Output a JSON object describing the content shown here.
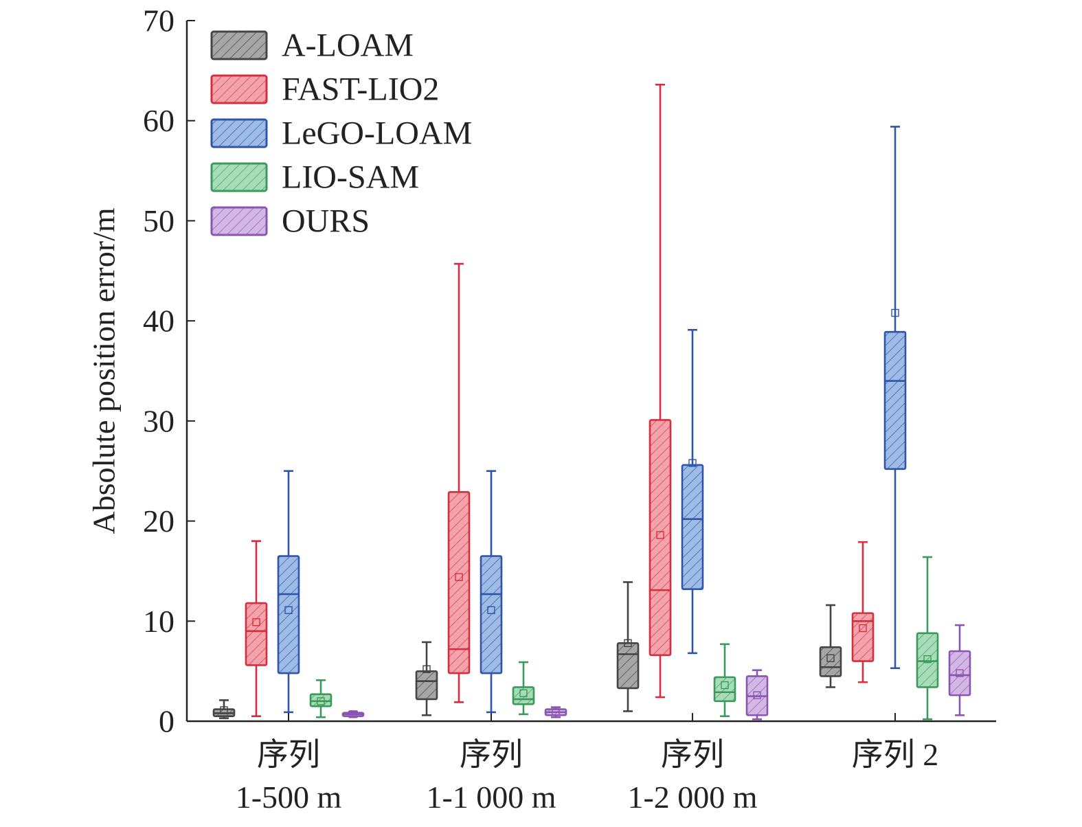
{
  "chart_data": {
    "type": "box",
    "ylabel": "Absolute position error/m",
    "ylim": [
      0,
      70
    ],
    "yticks": [
      0,
      10,
      20,
      30,
      40,
      50,
      60,
      70
    ],
    "legend_position": "top-left",
    "categories": [
      [
        "序列",
        "1-500 m"
      ],
      [
        "序列",
        "1-1 000 m"
      ],
      [
        "序列",
        "1-2 000 m"
      ],
      [
        "序列 2"
      ]
    ],
    "series": [
      {
        "name": "A-LOAM",
        "stroke": "#444444",
        "fill": "#a6a6a6",
        "boxes": [
          {
            "whisker_low": 0.3,
            "q1": 0.5,
            "median": 0.8,
            "q3": 1.2,
            "whisker_high": 2.1,
            "mean": 1.1
          },
          {
            "whisker_low": 0.6,
            "q1": 2.2,
            "median": 4.0,
            "q3": 5.0,
            "whisker_high": 7.9,
            "mean": 5.2
          },
          {
            "whisker_low": 1.0,
            "q1": 3.3,
            "median": 6.7,
            "q3": 7.8,
            "whisker_high": 13.9,
            "mean": 7.8
          },
          {
            "whisker_low": 3.4,
            "q1": 4.5,
            "median": 5.4,
            "q3": 7.4,
            "whisker_high": 11.6,
            "mean": 6.3
          }
        ]
      },
      {
        "name": "FAST-LIO2",
        "stroke": "#d62e3e",
        "fill": "#f3a3ab",
        "boxes": [
          {
            "whisker_low": 0.5,
            "q1": 5.6,
            "median": 9.0,
            "q3": 11.8,
            "whisker_high": 18.0,
            "mean": 9.9
          },
          {
            "whisker_low": 1.9,
            "q1": 4.8,
            "median": 7.2,
            "q3": 22.9,
            "whisker_high": 45.7,
            "mean": 14.4
          },
          {
            "whisker_low": 2.4,
            "q1": 6.6,
            "median": 13.1,
            "q3": 30.1,
            "whisker_high": 63.6,
            "mean": 18.6
          },
          {
            "whisker_low": 3.9,
            "q1": 6.0,
            "median": 10.0,
            "q3": 10.8,
            "whisker_high": 17.9,
            "mean": 9.3
          }
        ]
      },
      {
        "name": "LeGO-LOAM",
        "stroke": "#2e55a8",
        "fill": "#9dbbe5",
        "boxes": [
          {
            "whisker_low": 0.9,
            "q1": 4.8,
            "median": 12.7,
            "q3": 16.5,
            "whisker_high": 25.0,
            "mean": 11.1
          },
          {
            "whisker_low": 0.9,
            "q1": 4.8,
            "median": 12.7,
            "q3": 16.5,
            "whisker_high": 25.0,
            "mean": 11.1
          },
          {
            "whisker_low": 6.8,
            "q1": 13.2,
            "median": 20.2,
            "q3": 25.6,
            "whisker_high": 39.1,
            "mean": 25.8
          },
          {
            "whisker_low": 5.3,
            "q1": 25.2,
            "median": 34.0,
            "q3": 38.9,
            "whisker_high": 59.4,
            "mean": 40.8
          }
        ]
      },
      {
        "name": "LIO-SAM",
        "stroke": "#3a9a5a",
        "fill": "#a8dcb8",
        "boxes": [
          {
            "whisker_low": 0.4,
            "q1": 1.5,
            "median": 2.0,
            "q3": 2.7,
            "whisker_high": 4.1,
            "mean": 2.0
          },
          {
            "whisker_low": 0.7,
            "q1": 1.7,
            "median": 2.2,
            "q3": 3.4,
            "whisker_high": 5.9,
            "mean": 2.8
          },
          {
            "whisker_low": 0.5,
            "q1": 2.0,
            "median": 2.9,
            "q3": 4.4,
            "whisker_high": 7.7,
            "mean": 3.6
          },
          {
            "whisker_low": 0.2,
            "q1": 3.4,
            "median": 6.0,
            "q3": 8.8,
            "whisker_high": 16.4,
            "mean": 6.2
          }
        ]
      },
      {
        "name": "OURS",
        "stroke": "#8a55b0",
        "fill": "#d3b8e6",
        "boxes": [
          {
            "whisker_low": 0.45,
            "q1": 0.5,
            "median": 0.7,
            "q3": 0.85,
            "whisker_high": 0.95,
            "mean": 0.7
          },
          {
            "whisker_low": 0.4,
            "q1": 0.6,
            "median": 0.9,
            "q3": 1.2,
            "whisker_high": 1.4,
            "mean": 0.9
          },
          {
            "whisker_low": 0.2,
            "q1": 0.6,
            "median": 2.5,
            "q3": 4.5,
            "whisker_high": 5.1,
            "mean": 2.6
          },
          {
            "whisker_low": 0.6,
            "q1": 2.6,
            "median": 4.6,
            "q3": 7.0,
            "whisker_high": 9.6,
            "mean": 4.8
          }
        ]
      }
    ]
  }
}
